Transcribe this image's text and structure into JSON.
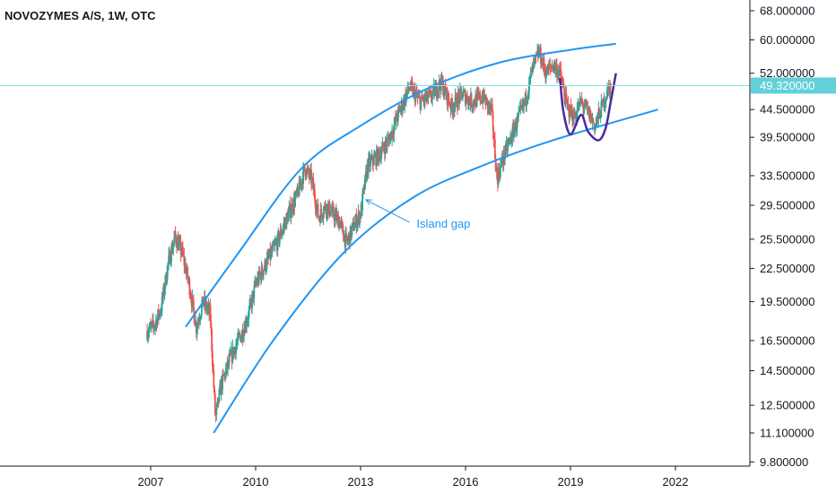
{
  "header": {
    "title": "NOVOZYMES A/S, 1W, OTC"
  },
  "colors": {
    "up": "#26a69a",
    "down": "#ef5350",
    "channel": "#2196f3",
    "price_line": "#8cdee4",
    "price_tag_bg": "#61d0d8",
    "pattern": "#4a2aa0",
    "axis_line": "#131722"
  },
  "chart_data": {
    "type": "candlestick",
    "scale": "log",
    "interval": "1W",
    "ylim": [
      9.8,
      68.0
    ],
    "xlim": [
      2005.3,
      2024.4
    ],
    "y_ticks": [
      "68.000000",
      "60.000000",
      "52.000000",
      "44.500000",
      "39.500000",
      "33.500000",
      "29.500000",
      "25.500000",
      "22.500000",
      "19.500000",
      "16.500000",
      "14.500000",
      "12.500000",
      "11.100000",
      "9.800000"
    ],
    "x_ticks": [
      "2007",
      "2010",
      "2013",
      "2016",
      "2019",
      "2022"
    ],
    "last_price": "49.320000",
    "grid": false,
    "annotations": [
      {
        "text": "Island gap",
        "date": 2014.6,
        "price": 26.8,
        "arrow_to": [
          2013.15,
          30.2
        ]
      }
    ],
    "channel_upper": [
      [
        2008.0,
        17.5
      ],
      [
        2009.5,
        24.0
      ],
      [
        2011.3,
        34.5
      ],
      [
        2013.0,
        41.5
      ],
      [
        2015.0,
        49.0
      ],
      [
        2017.0,
        54.5
      ],
      [
        2019.0,
        57.5
      ],
      [
        2020.3,
        59.0
      ]
    ],
    "channel_lower": [
      [
        2008.8,
        11.1
      ],
      [
        2010.5,
        16.5
      ],
      [
        2012.5,
        24.0
      ],
      [
        2014.5,
        30.5
      ],
      [
        2016.5,
        35.0
      ],
      [
        2018.5,
        39.0
      ],
      [
        2021.5,
        44.5
      ]
    ],
    "pattern_path": [
      [
        2018.7,
        51.0
      ],
      [
        2018.8,
        44.0
      ],
      [
        2019.0,
        40.0
      ],
      [
        2019.3,
        43.5
      ],
      [
        2019.5,
        40.5
      ],
      [
        2019.8,
        39.0
      ],
      [
        2020.0,
        41.0
      ],
      [
        2020.15,
        46.0
      ],
      [
        2020.3,
        52.0
      ]
    ],
    "price_path": [
      [
        2006.9,
        17.2
      ],
      [
        2007.1,
        17.6
      ],
      [
        2007.3,
        19.0
      ],
      [
        2007.5,
        23.0
      ],
      [
        2007.7,
        25.8
      ],
      [
        2007.9,
        24.0
      ],
      [
        2008.1,
        21.0
      ],
      [
        2008.3,
        17.5
      ],
      [
        2008.5,
        19.5
      ],
      [
        2008.7,
        18.5
      ],
      [
        2008.85,
        11.8
      ],
      [
        2009.0,
        13.5
      ],
      [
        2009.2,
        14.8
      ],
      [
        2009.4,
        16.0
      ],
      [
        2009.6,
        17.0
      ],
      [
        2009.8,
        18.5
      ],
      [
        2010.0,
        21.0
      ],
      [
        2010.3,
        23.0
      ],
      [
        2010.6,
        25.0
      ],
      [
        2010.9,
        28.0
      ],
      [
        2011.2,
        31.0
      ],
      [
        2011.4,
        34.5
      ],
      [
        2011.6,
        33.0
      ],
      [
        2011.8,
        28.0
      ],
      [
        2012.0,
        29.5
      ],
      [
        2012.2,
        28.5
      ],
      [
        2012.4,
        27.5
      ],
      [
        2012.6,
        25.0
      ],
      [
        2012.8,
        27.0
      ],
      [
        2013.0,
        28.5
      ],
      [
        2013.2,
        35.0
      ],
      [
        2013.5,
        36.5
      ],
      [
        2013.8,
        39.0
      ],
      [
        2014.1,
        44.0
      ],
      [
        2014.4,
        49.0
      ],
      [
        2014.7,
        46.0
      ],
      [
        2015.0,
        47.0
      ],
      [
        2015.3,
        50.0
      ],
      [
        2015.6,
        45.0
      ],
      [
        2015.9,
        47.5
      ],
      [
        2016.2,
        46.0
      ],
      [
        2016.5,
        47.0
      ],
      [
        2016.75,
        44.0
      ],
      [
        2016.9,
        33.0
      ],
      [
        2017.1,
        36.5
      ],
      [
        2017.4,
        41.0
      ],
      [
        2017.7,
        46.0
      ],
      [
        2017.9,
        52.5
      ],
      [
        2018.1,
        57.0
      ],
      [
        2018.3,
        52.0
      ],
      [
        2018.5,
        54.0
      ],
      [
        2018.7,
        52.0
      ],
      [
        2018.9,
        45.0
      ],
      [
        2019.1,
        43.0
      ],
      [
        2019.3,
        46.0
      ],
      [
        2019.5,
        44.0
      ],
      [
        2019.7,
        41.5
      ],
      [
        2019.9,
        45.0
      ],
      [
        2020.05,
        48.0
      ],
      [
        2020.15,
        49.32
      ]
    ]
  }
}
